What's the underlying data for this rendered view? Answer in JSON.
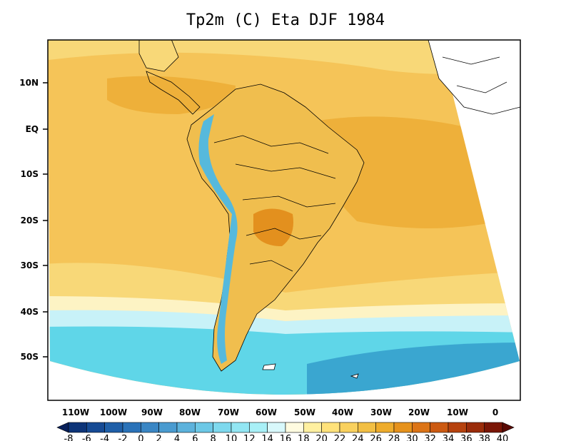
{
  "title": "Tp2m (C) Eta DJF 1984",
  "lat_ticks": [
    "10N",
    "EQ",
    "10S",
    "20S",
    "30S",
    "40S",
    "50S"
  ],
  "lon_ticks": [
    "110W",
    "100W",
    "90W",
    "80W",
    "70W",
    "60W",
    "50W",
    "40W",
    "30W",
    "20W",
    "10W",
    "0"
  ],
  "colorbar": {
    "labels": [
      "-8",
      "-6",
      "-4",
      "-2",
      "0",
      "2",
      "4",
      "6",
      "8",
      "10",
      "12",
      "14",
      "16",
      "18",
      "20",
      "22",
      "24",
      "26",
      "28",
      "30",
      "32",
      "34",
      "36",
      "38",
      "40"
    ],
    "colors": [
      "#08205a",
      "#0d3478",
      "#164a94",
      "#1f5fa8",
      "#2a72b8",
      "#3a86c4",
      "#4a9bd0",
      "#5cb2dc",
      "#6cc8e6",
      "#7ed9ee",
      "#92e6f3",
      "#a8f0f7",
      "#d8f8fb",
      "#fffbe0",
      "#fff0a0",
      "#ffe27a",
      "#f9d15e",
      "#f2bf44",
      "#eeac2c",
      "#e6921c",
      "#dc7416",
      "#cc5a12",
      "#b6420e",
      "#9a2c0a",
      "#7a1606",
      "#5a0a04"
    ]
  },
  "field_colors": {
    "ocean_warm": "#f5c458",
    "ocean_hot": "#eeb03a",
    "ocean_mild": "#f8d878",
    "ocean_cool": "#fdf3c4",
    "ocean_cold": "#c8f2f8",
    "southern_band": "#5fd6e8",
    "southern_deep": "#3aa6d0",
    "andes": "#56b9dc",
    "land": "#f0be4e",
    "land_hot": "#e3901e"
  }
}
